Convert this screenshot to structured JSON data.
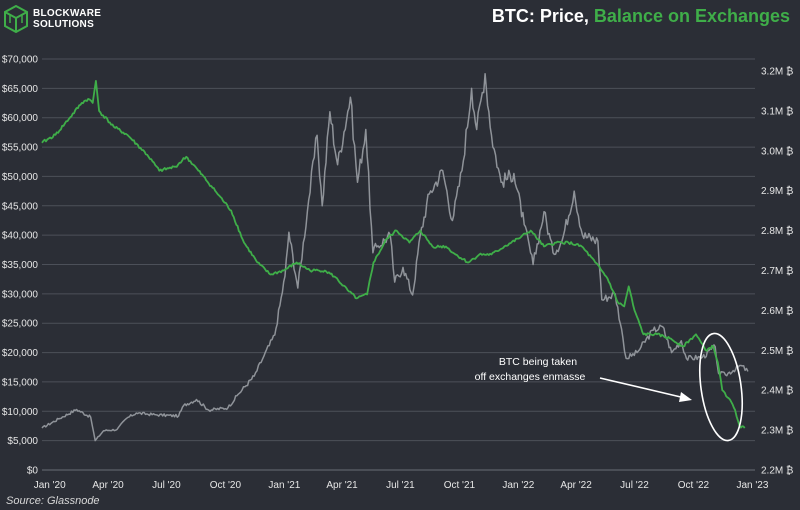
{
  "logo": {
    "line1": "BLOCKWARE",
    "line2": "SOLUTIONS"
  },
  "title": {
    "part1": "BTC: Price, ",
    "part2": "Balance on Exchanges"
  },
  "source": "Source: Glassnode",
  "colors": {
    "background": "#2b2e36",
    "price": "#8f9399",
    "balance": "#3fae49",
    "grid": "#4c5059",
    "accent_green": "#3fae49"
  },
  "chart_data": {
    "type": "line",
    "title": "BTC: Price, Balance on Exchanges",
    "x_tick_labels": [
      "Jan '20",
      "Apr '20",
      "Jul '20",
      "Oct '20",
      "Jan '21",
      "Apr '21",
      "Jul '21",
      "Oct '21",
      "Jan '22",
      "Apr '22",
      "Jul '22",
      "Oct '22",
      "Jan '23"
    ],
    "y_left_tick_labels": [
      "$0",
      "$5,000",
      "$10,000",
      "$15,000",
      "$20,000",
      "$25,000",
      "$30,000",
      "$35,000",
      "$40,000",
      "$45,000",
      "$50,000",
      "$55,000",
      "$60,000",
      "$65,000",
      "$70,000"
    ],
    "y_right_tick_labels": [
      "2.2M ₿",
      "2.3M ₿",
      "2.4M ₿",
      "2.5M ₿",
      "2.6M ₿",
      "2.7M ₿",
      "2.8M ₿",
      "2.9M ₿",
      "3.0M ₿",
      "3.1M ₿",
      "3.2M ₿"
    ],
    "y_left_range": [
      0,
      70000
    ],
    "y_right_range": [
      2200000,
      3230000
    ],
    "x_range": [
      "2019-12-20",
      "2023-01-05"
    ],
    "grid": true,
    "series": [
      {
        "name": "Price",
        "axis": "left",
        "points": [
          [
            "2019-12-20",
            7150
          ],
          [
            "2020-01-15",
            8700
          ],
          [
            "2020-02-12",
            10300
          ],
          [
            "2020-03-05",
            9000
          ],
          [
            "2020-03-12",
            5000
          ],
          [
            "2020-03-25",
            6700
          ],
          [
            "2020-04-15",
            6900
          ],
          [
            "2020-04-30",
            8800
          ],
          [
            "2020-05-15",
            9700
          ],
          [
            "2020-06-15",
            9400
          ],
          [
            "2020-07-20",
            9200
          ],
          [
            "2020-07-28",
            11000
          ],
          [
            "2020-08-17",
            12000
          ],
          [
            "2020-09-05",
            10200
          ],
          [
            "2020-10-05",
            10600
          ],
          [
            "2020-10-21",
            12900
          ],
          [
            "2020-11-15",
            16000
          ],
          [
            "2020-11-30",
            19400
          ],
          [
            "2020-12-17",
            23000
          ],
          [
            "2021-01-02",
            33000
          ],
          [
            "2021-01-08",
            40500
          ],
          [
            "2021-01-22",
            31000
          ],
          [
            "2021-02-08",
            46000
          ],
          [
            "2021-02-21",
            57000
          ],
          [
            "2021-03-01",
            45000
          ],
          [
            "2021-03-13",
            61000
          ],
          [
            "2021-03-25",
            52000
          ],
          [
            "2021-04-14",
            63500
          ],
          [
            "2021-04-25",
            49000
          ],
          [
            "2021-05-08",
            58000
          ],
          [
            "2021-05-19",
            37000
          ],
          [
            "2021-05-25",
            38000
          ],
          [
            "2021-06-15",
            40000
          ],
          [
            "2021-06-22",
            32000
          ],
          [
            "2021-07-05",
            34500
          ],
          [
            "2021-07-20",
            29800
          ],
          [
            "2021-08-01",
            40000
          ],
          [
            "2021-08-15",
            47000
          ],
          [
            "2021-09-05",
            51000
          ],
          [
            "2021-09-20",
            42500
          ],
          [
            "2021-10-05",
            51000
          ],
          [
            "2021-10-20",
            65000
          ],
          [
            "2021-10-28",
            58000
          ],
          [
            "2021-11-10",
            67500
          ],
          [
            "2021-11-20",
            57000
          ],
          [
            "2021-12-05",
            49000
          ],
          [
            "2021-12-25",
            50500
          ],
          [
            "2022-01-10",
            41800
          ],
          [
            "2022-01-24",
            35000
          ],
          [
            "2022-02-10",
            44000
          ],
          [
            "2022-02-24",
            37000
          ],
          [
            "2022-03-10",
            39000
          ],
          [
            "2022-03-29",
            47500
          ],
          [
            "2022-04-11",
            40000
          ],
          [
            "2022-05-05",
            39000
          ],
          [
            "2022-05-11",
            29000
          ],
          [
            "2022-06-01",
            30000
          ],
          [
            "2022-06-13",
            22500
          ],
          [
            "2022-06-18",
            19000
          ],
          [
            "2022-07-05",
            20000
          ],
          [
            "2022-07-30",
            23800
          ],
          [
            "2022-08-14",
            24400
          ],
          [
            "2022-08-28",
            20000
          ],
          [
            "2022-09-12",
            22000
          ],
          [
            "2022-09-20",
            19000
          ],
          [
            "2022-10-15",
            19200
          ],
          [
            "2022-11-04",
            21000
          ],
          [
            "2022-11-09",
            16500
          ],
          [
            "2022-11-20",
            16200
          ],
          [
            "2022-12-14",
            17800
          ],
          [
            "2022-12-25",
            16800
          ]
        ]
      },
      {
        "name": "Balance on Exchanges",
        "axis": "right",
        "points": [
          [
            "2019-12-20",
            3020000
          ],
          [
            "2020-01-10",
            3040000
          ],
          [
            "2020-01-31",
            3080000
          ],
          [
            "2020-02-20",
            3120000
          ],
          [
            "2020-03-01",
            3130000
          ],
          [
            "2020-03-08",
            3120000
          ],
          [
            "2020-03-13",
            3175000
          ],
          [
            "2020-03-18",
            3100000
          ],
          [
            "2020-04-10",
            3060000
          ],
          [
            "2020-05-01",
            3040000
          ],
          [
            "2020-06-01",
            2990000
          ],
          [
            "2020-06-20",
            2950000
          ],
          [
            "2020-07-15",
            2960000
          ],
          [
            "2020-08-01",
            2985000
          ],
          [
            "2020-08-20",
            2950000
          ],
          [
            "2020-09-15",
            2900000
          ],
          [
            "2020-10-10",
            2850000
          ],
          [
            "2020-10-30",
            2770000
          ],
          [
            "2020-11-20",
            2720000
          ],
          [
            "2020-12-10",
            2690000
          ],
          [
            "2020-12-31",
            2700000
          ],
          [
            "2021-01-20",
            2720000
          ],
          [
            "2021-02-10",
            2700000
          ],
          [
            "2021-03-05",
            2700000
          ],
          [
            "2021-03-20",
            2685000
          ],
          [
            "2021-04-10",
            2650000
          ],
          [
            "2021-04-24",
            2630000
          ],
          [
            "2021-05-10",
            2640000
          ],
          [
            "2021-05-20",
            2720000
          ],
          [
            "2021-06-10",
            2780000
          ],
          [
            "2021-06-25",
            2800000
          ],
          [
            "2021-07-15",
            2770000
          ],
          [
            "2021-08-01",
            2800000
          ],
          [
            "2021-08-20",
            2760000
          ],
          [
            "2021-09-10",
            2760000
          ],
          [
            "2021-09-25",
            2740000
          ],
          [
            "2021-10-15",
            2720000
          ],
          [
            "2021-11-01",
            2740000
          ],
          [
            "2021-11-20",
            2740000
          ],
          [
            "2021-12-10",
            2760000
          ],
          [
            "2022-01-01",
            2780000
          ],
          [
            "2022-01-20",
            2800000
          ],
          [
            "2022-02-10",
            2760000
          ],
          [
            "2022-03-01",
            2770000
          ],
          [
            "2022-03-20",
            2770000
          ],
          [
            "2022-04-10",
            2760000
          ],
          [
            "2022-05-01",
            2720000
          ],
          [
            "2022-05-20",
            2680000
          ],
          [
            "2022-06-05",
            2620000
          ],
          [
            "2022-06-15",
            2610000
          ],
          [
            "2022-06-22",
            2660000
          ],
          [
            "2022-07-01",
            2600000
          ],
          [
            "2022-07-15",
            2540000
          ],
          [
            "2022-08-05",
            2540000
          ],
          [
            "2022-08-25",
            2530000
          ],
          [
            "2022-09-15",
            2510000
          ],
          [
            "2022-10-05",
            2540000
          ],
          [
            "2022-10-20",
            2500000
          ],
          [
            "2022-11-01",
            2510000
          ],
          [
            "2022-11-08",
            2470000
          ],
          [
            "2022-11-15",
            2400000
          ],
          [
            "2022-11-25",
            2380000
          ],
          [
            "2022-12-05",
            2350000
          ],
          [
            "2022-12-12",
            2310000
          ],
          [
            "2022-12-20",
            2305000
          ]
        ]
      }
    ],
    "annotation": {
      "lines": [
        "BTC being taken",
        "off exchanges enmasse"
      ]
    }
  }
}
